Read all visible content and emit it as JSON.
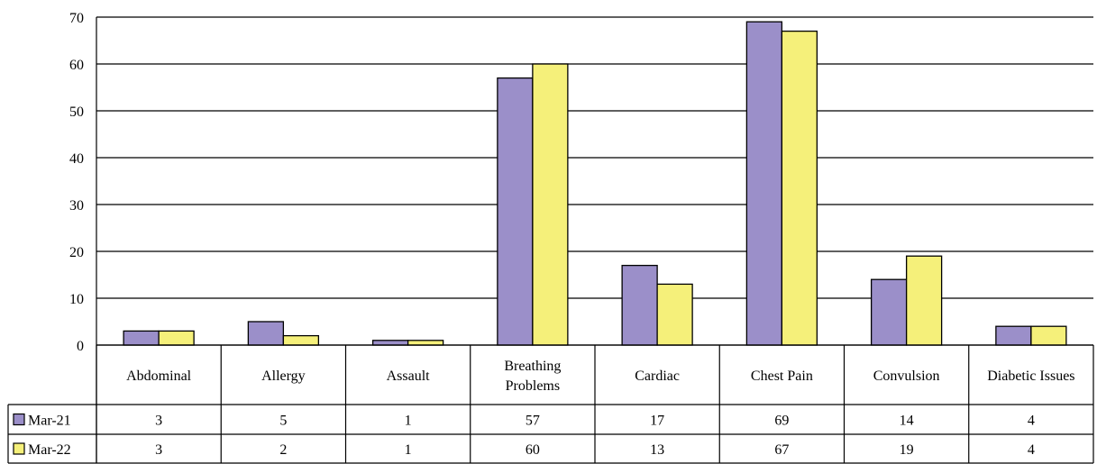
{
  "chart_data": {
    "type": "bar",
    "categories": [
      [
        "Abdominal"
      ],
      [
        "Allergy"
      ],
      [
        "Assault"
      ],
      [
        "Breathing",
        "Problems"
      ],
      [
        "Cardiac"
      ],
      [
        "Chest Pain"
      ],
      [
        "Convulsion"
      ],
      [
        "Diabetic Issues"
      ]
    ],
    "series": [
      {
        "name": "Mar-21",
        "color": "#9b8fc9",
        "values": [
          3,
          5,
          1,
          57,
          17,
          69,
          14,
          4
        ]
      },
      {
        "name": "Mar-22",
        "color": "#f5f07a",
        "values": [
          3,
          2,
          1,
          60,
          13,
          67,
          19,
          4
        ]
      }
    ],
    "ylim": [
      0,
      70
    ],
    "yticks": [
      0,
      10,
      20,
      30,
      40,
      50,
      60,
      70
    ],
    "grid": true,
    "legend": "data-table-left",
    "title": "",
    "xlabel": "",
    "ylabel": ""
  }
}
